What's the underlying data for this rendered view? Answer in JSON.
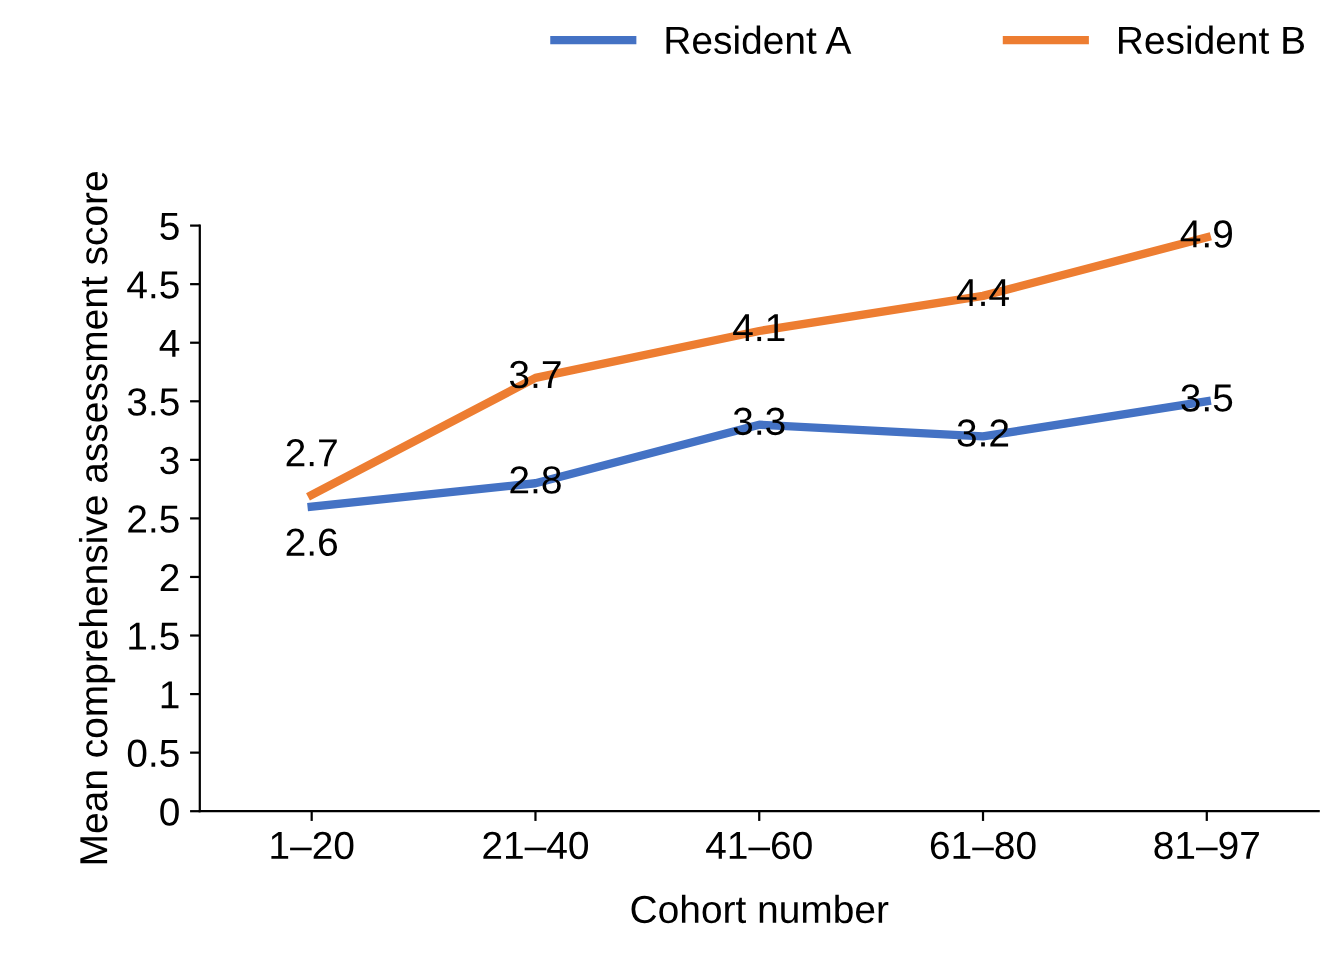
{
  "chart_data": {
    "type": "line",
    "xlabel": "Cohort number",
    "ylabel": "Mean comprehensive assessment score",
    "categories": [
      "1–20",
      "21–40",
      "41–60",
      "61–80",
      "81–97"
    ],
    "series": [
      {
        "name": "Resident A",
        "color": "#4472c4",
        "values": [
          2.6,
          2.8,
          3.3,
          3.2,
          3.5
        ]
      },
      {
        "name": "Resident B",
        "color": "#ed7d31",
        "values": [
          2.7,
          3.7,
          4.1,
          4.4,
          4.9
        ]
      }
    ],
    "ylim": [
      0,
      5
    ],
    "yticks": [
      0,
      0.5,
      1,
      1.5,
      2,
      2.5,
      3,
      3.5,
      4,
      4.5,
      5
    ],
    "data_labels": true,
    "legend": "top right",
    "grid": false,
    "marker": "none",
    "line_style": "solid"
  }
}
